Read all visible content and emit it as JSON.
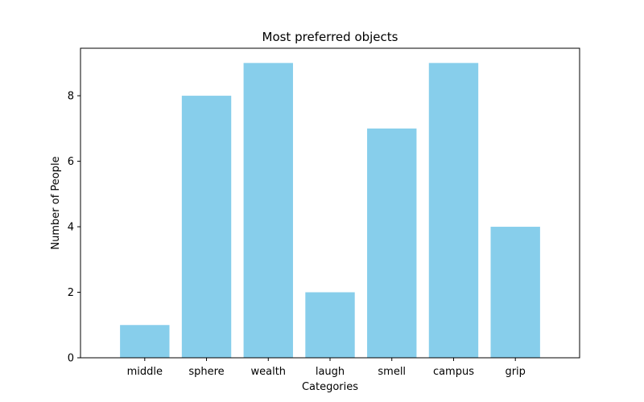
{
  "chart_data": {
    "type": "bar",
    "title": "Most preferred objects",
    "xlabel": "Categories",
    "ylabel": "Number of People",
    "categories": [
      "middle",
      "sphere",
      "wealth",
      "laugh",
      "smell",
      "campus",
      "grip"
    ],
    "values": [
      1,
      8,
      9,
      2,
      7,
      9,
      4
    ],
    "ylim": [
      0,
      9.45
    ],
    "yticks": [
      0,
      2,
      4,
      6,
      8
    ],
    "bar_color": "#87ceeb",
    "grid": false,
    "legend": "none"
  }
}
